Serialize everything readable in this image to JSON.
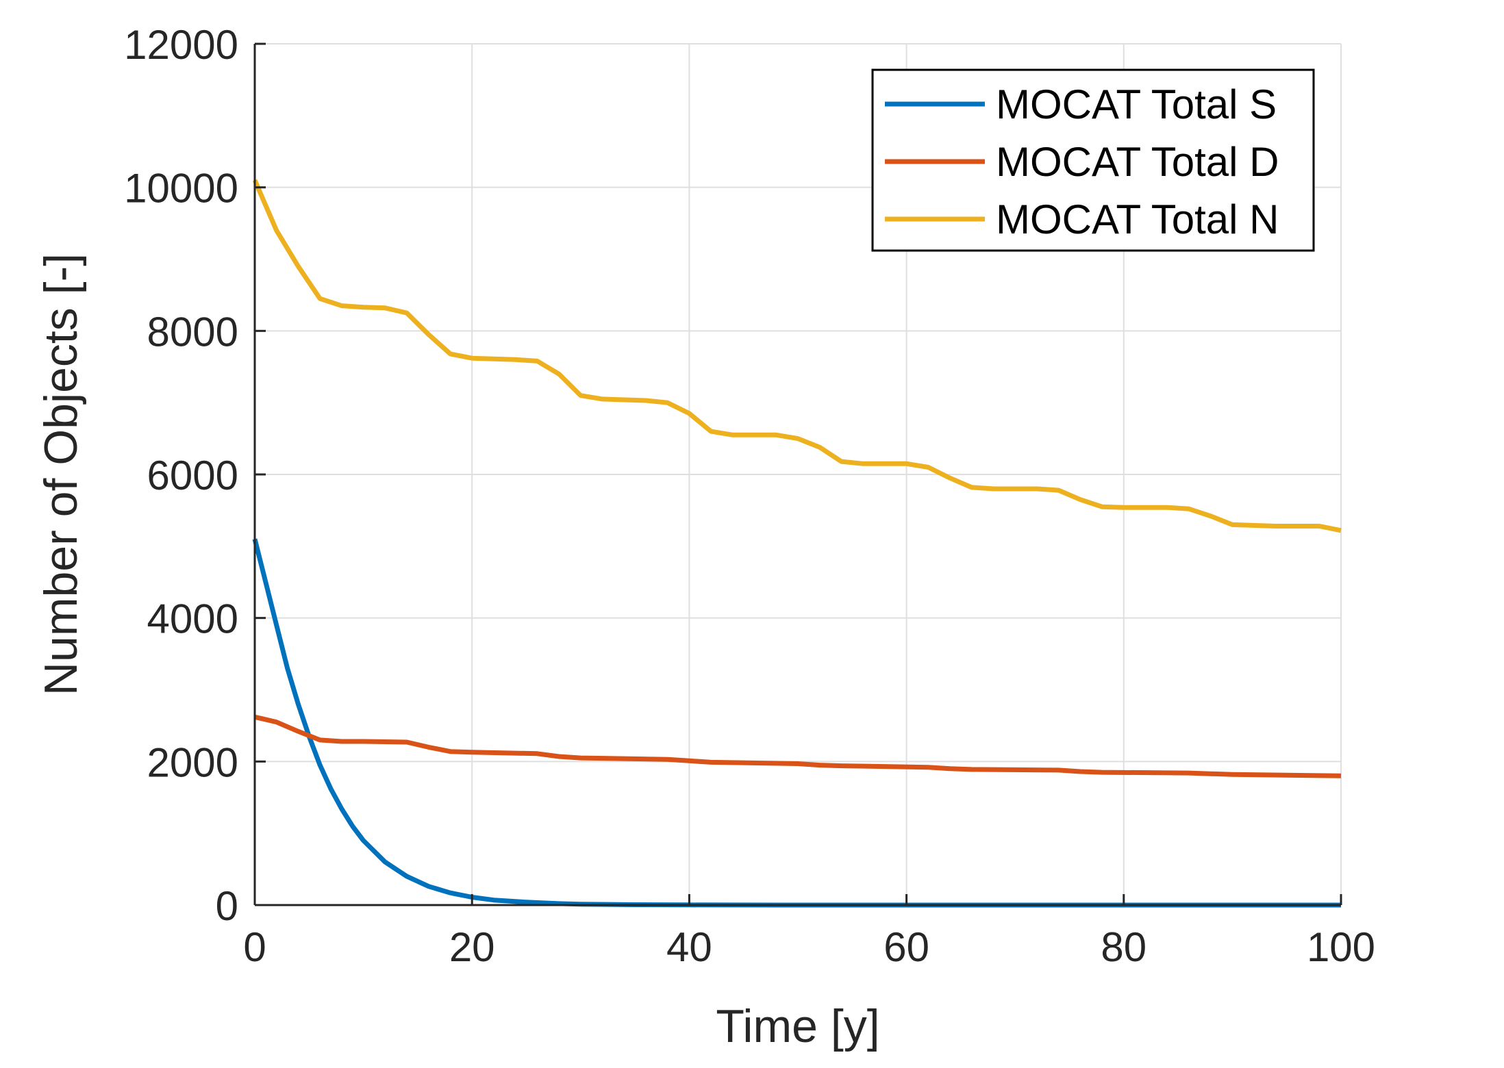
{
  "chart_data": {
    "type": "line",
    "title": "",
    "xlabel": "Time [y]",
    "ylabel": "Number of Objects [-]",
    "xlim": [
      0,
      100
    ],
    "ylim": [
      0,
      12000
    ],
    "xticks": [
      0,
      20,
      40,
      60,
      80,
      100
    ],
    "yticks": [
      0,
      2000,
      4000,
      6000,
      8000,
      10000,
      12000
    ],
    "xtick_labels": [
      "0",
      "20",
      "40",
      "60",
      "80",
      "100"
    ],
    "ytick_labels": [
      "0",
      "2000",
      "4000",
      "6000",
      "8000",
      "10000",
      "12000"
    ],
    "grid": true,
    "legend_location": "top-right",
    "colors": {
      "axis": "#262626",
      "grid": "#dfdfdf",
      "legend_border": "#000000"
    },
    "series": [
      {
        "name": "MOCAT Total S",
        "color": "#0072BD",
        "x": [
          0,
          1,
          2,
          3,
          4,
          5,
          6,
          7,
          8,
          9,
          10,
          12,
          14,
          16,
          18,
          20,
          22,
          25,
          28,
          30,
          35,
          40,
          50,
          60,
          70,
          80,
          90,
          100
        ],
        "y": [
          5100,
          4500,
          3900,
          3300,
          2800,
          2350,
          1950,
          1620,
          1340,
          1100,
          900,
          600,
          400,
          260,
          170,
          110,
          70,
          40,
          20,
          12,
          5,
          2,
          0,
          0,
          0,
          0,
          0,
          0
        ]
      },
      {
        "name": "MOCAT Total D",
        "color": "#D95319",
        "x": [
          0,
          2,
          4,
          6,
          8,
          10,
          14,
          16,
          18,
          20,
          26,
          28,
          30,
          38,
          40,
          42,
          50,
          52,
          54,
          62,
          64,
          66,
          74,
          76,
          78,
          86,
          88,
          90,
          100
        ],
        "y": [
          2620,
          2550,
          2420,
          2300,
          2280,
          2280,
          2270,
          2200,
          2140,
          2130,
          2110,
          2070,
          2050,
          2030,
          2010,
          1990,
          1970,
          1950,
          1940,
          1920,
          1900,
          1890,
          1880,
          1860,
          1850,
          1840,
          1830,
          1820,
          1800
        ]
      },
      {
        "name": "MOCAT Total N",
        "color": "#EDB120",
        "x": [
          0,
          2,
          4,
          6,
          8,
          10,
          12,
          14,
          16,
          18,
          20,
          24,
          26,
          28,
          30,
          32,
          36,
          38,
          40,
          42,
          44,
          48,
          50,
          52,
          54,
          56,
          60,
          62,
          64,
          66,
          68,
          72,
          74,
          76,
          78,
          80,
          84,
          86,
          88,
          90,
          94,
          98,
          100
        ],
        "y": [
          10100,
          9400,
          8900,
          8450,
          8350,
          8330,
          8320,
          8250,
          7950,
          7680,
          7620,
          7600,
          7580,
          7400,
          7100,
          7050,
          7030,
          7000,
          6850,
          6600,
          6550,
          6550,
          6500,
          6380,
          6180,
          6150,
          6150,
          6100,
          5950,
          5820,
          5800,
          5800,
          5780,
          5650,
          5550,
          5540,
          5540,
          5520,
          5420,
          5300,
          5280,
          5280,
          5220
        ]
      }
    ]
  }
}
